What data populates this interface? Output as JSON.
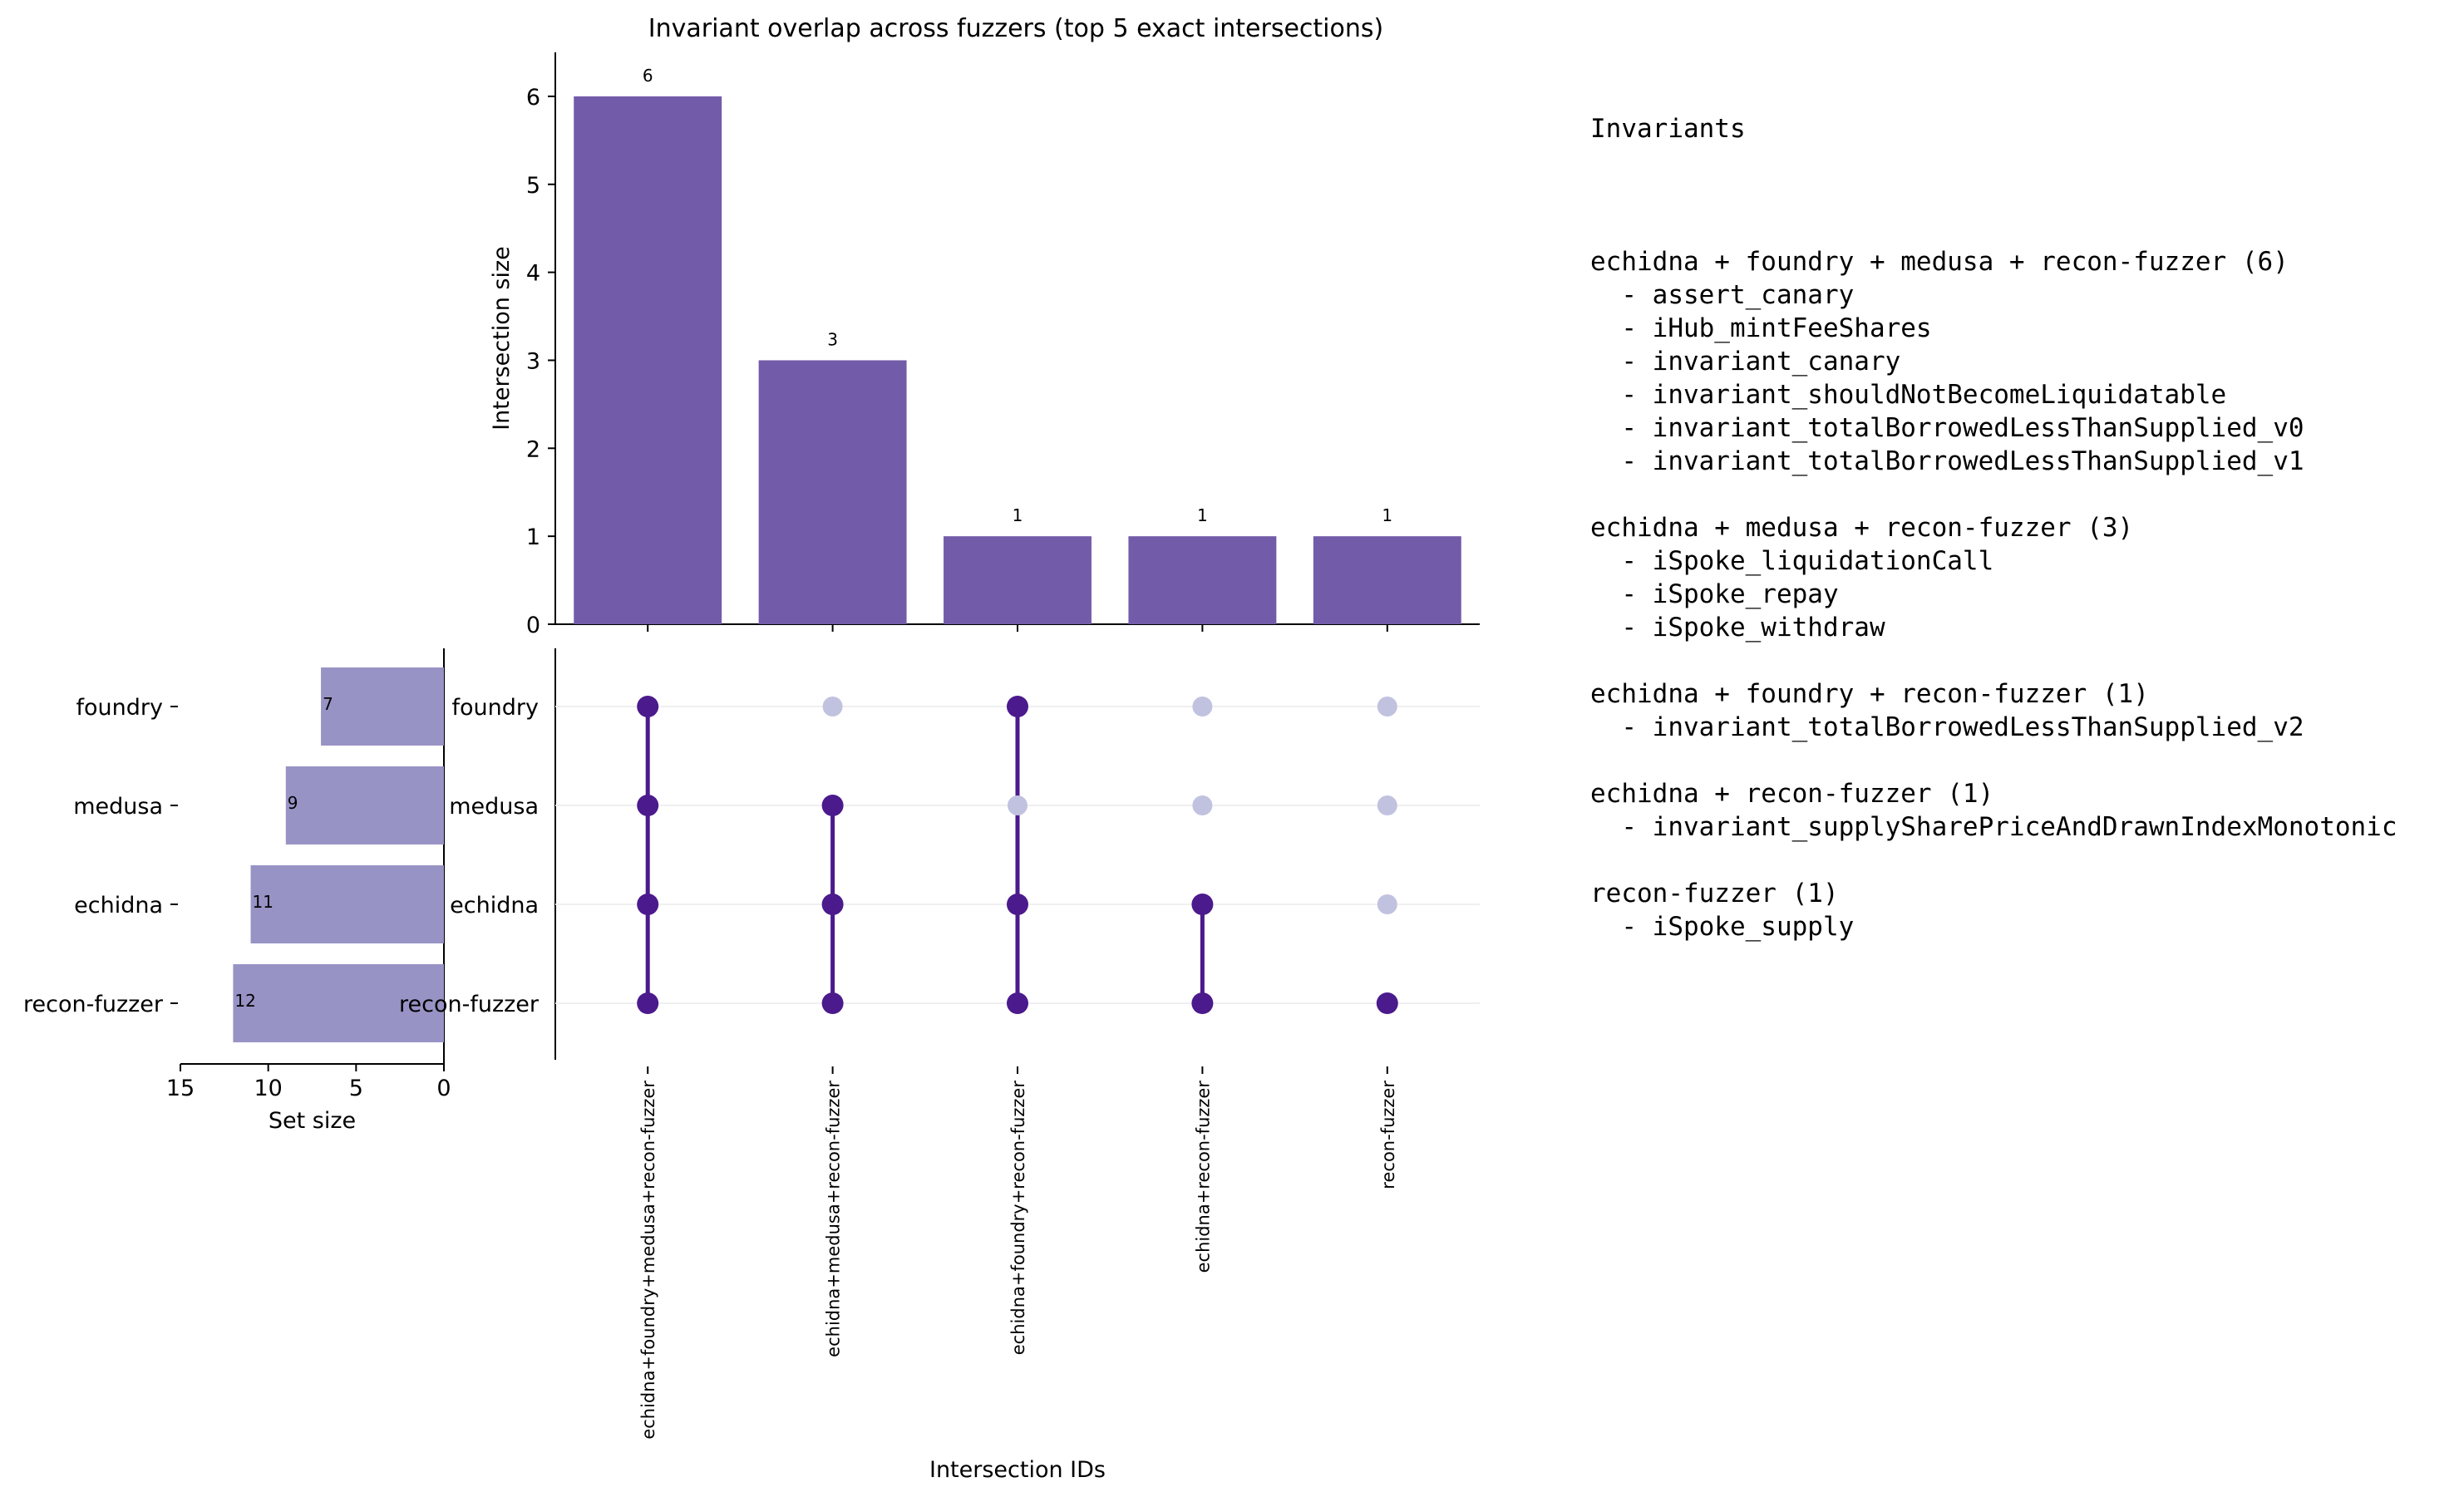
{
  "chart_data": {
    "type": "upset",
    "title": "Invariant overlap across fuzzers (top 5 exact intersections)",
    "intersections": {
      "ylabel": "Intersection size",
      "xlabel": "Intersection IDs",
      "ylim": [
        0,
        6.5
      ],
      "yticks": [
        0,
        1,
        2,
        3,
        4,
        5,
        6
      ],
      "ids": [
        "echidna+foundry+medusa+recon-fuzzer",
        "echidna+medusa+recon-fuzzer",
        "echidna+foundry+recon-fuzzer",
        "echidna+recon-fuzzer",
        "recon-fuzzer"
      ],
      "values": [
        6,
        3,
        1,
        1,
        1
      ],
      "members": [
        [
          "echidna",
          "foundry",
          "medusa",
          "recon-fuzzer"
        ],
        [
          "echidna",
          "medusa",
          "recon-fuzzer"
        ],
        [
          "echidna",
          "foundry",
          "recon-fuzzer"
        ],
        [
          "echidna",
          "recon-fuzzer"
        ],
        [
          "recon-fuzzer"
        ]
      ],
      "bar_color": "#725ca9"
    },
    "sets": {
      "xlabel": "Set size",
      "xlim": [
        15,
        0
      ],
      "xticks": [
        15,
        10,
        5,
        0
      ],
      "names": [
        "foundry",
        "medusa",
        "echidna",
        "recon-fuzzer"
      ],
      "values": [
        7,
        9,
        11,
        12
      ],
      "bar_color": "#9893c5"
    },
    "matrix": {
      "active_color": "#4b1a8c",
      "inactive_color": "#c1c2df"
    }
  },
  "invariants": {
    "heading": "Invariants",
    "groups": [
      {
        "title": "echidna + foundry + medusa + recon-fuzzer (6)",
        "items": [
          "- assert_canary",
          "- iHub_mintFeeShares",
          "- invariant_canary",
          "- invariant_shouldNotBecomeLiquidatable",
          "- invariant_totalBorrowedLessThanSupplied_v0",
          "- invariant_totalBorrowedLessThanSupplied_v1"
        ]
      },
      {
        "title": "echidna + medusa + recon-fuzzer (3)",
        "items": [
          "- iSpoke_liquidationCall",
          "- iSpoke_repay",
          "- iSpoke_withdraw"
        ]
      },
      {
        "title": "echidna + foundry + recon-fuzzer (1)",
        "items": [
          "- invariant_totalBorrowedLessThanSupplied_v2"
        ]
      },
      {
        "title": "echidna + recon-fuzzer (1)",
        "items": [
          "- invariant_supplySharePriceAndDrawnIndexMonotonic"
        ]
      },
      {
        "title": "recon-fuzzer (1)",
        "items": [
          "- iSpoke_supply"
        ]
      }
    ]
  }
}
